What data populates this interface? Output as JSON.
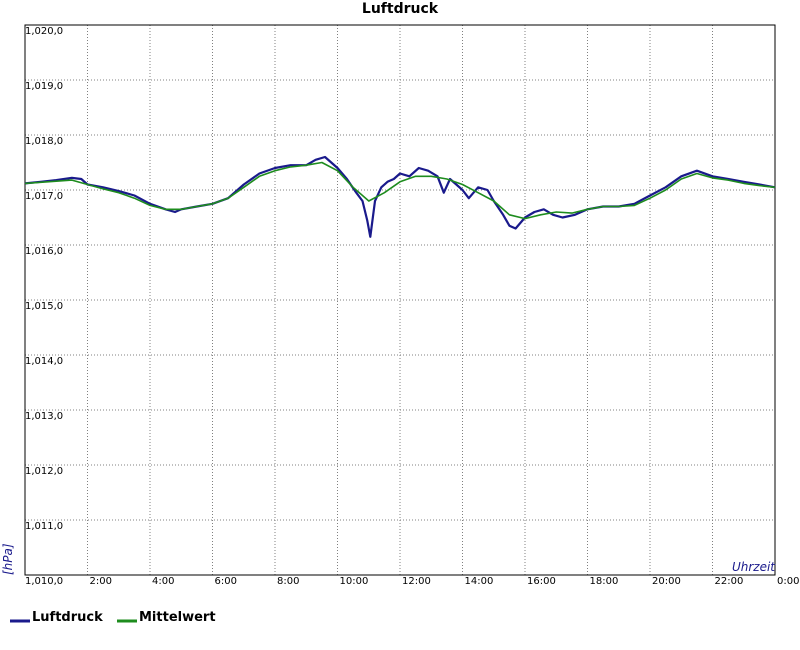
{
  "chart_data": {
    "type": "line",
    "title": "Luftdruck",
    "ylabel": "[hPa]",
    "xlabel": "Uhrzeit",
    "ylim": [
      1010.0,
      1020.0
    ],
    "xlim": [
      0,
      24
    ],
    "y_ticks": [
      "1,010,0",
      "1,011,0",
      "1,012,0",
      "1,013,0",
      "1,014,0",
      "1,015,0",
      "1,016,0",
      "1,017,0",
      "1,018,0",
      "1,019,0",
      "1,020,0"
    ],
    "x_ticks": [
      {
        "x": 2,
        "label": "2:00"
      },
      {
        "x": 4,
        "label": "4:00"
      },
      {
        "x": 6,
        "label": "6:00"
      },
      {
        "x": 8,
        "label": "8:00"
      },
      {
        "x": 10,
        "label": "10:00"
      },
      {
        "x": 12,
        "label": "12:00"
      },
      {
        "x": 14,
        "label": "14:00"
      },
      {
        "x": 16,
        "label": "16:00"
      },
      {
        "x": 18,
        "label": "18:00"
      },
      {
        "x": 20,
        "label": "20:00"
      },
      {
        "x": 22,
        "label": "22:00"
      },
      {
        "x": 24,
        "label": "0:00"
      }
    ],
    "grid": true,
    "legend_position": "bottom-left",
    "series": [
      {
        "name": "Luftdruck",
        "color": "#1a1a8c",
        "points": [
          [
            0.0,
            1017.12
          ],
          [
            0.5,
            1017.15
          ],
          [
            1.0,
            1017.18
          ],
          [
            1.5,
            1017.22
          ],
          [
            1.8,
            1017.2
          ],
          [
            2.0,
            1017.1
          ],
          [
            2.5,
            1017.05
          ],
          [
            3.0,
            1016.98
          ],
          [
            3.5,
            1016.9
          ],
          [
            4.0,
            1016.75
          ],
          [
            4.5,
            1016.65
          ],
          [
            4.8,
            1016.6
          ],
          [
            5.0,
            1016.65
          ],
          [
            5.5,
            1016.7
          ],
          [
            6.0,
            1016.75
          ],
          [
            6.5,
            1016.85
          ],
          [
            7.0,
            1017.1
          ],
          [
            7.5,
            1017.3
          ],
          [
            8.0,
            1017.4
          ],
          [
            8.5,
            1017.45
          ],
          [
            9.0,
            1017.45
          ],
          [
            9.3,
            1017.55
          ],
          [
            9.6,
            1017.6
          ],
          [
            10.0,
            1017.4
          ],
          [
            10.3,
            1017.2
          ],
          [
            10.6,
            1016.95
          ],
          [
            10.8,
            1016.8
          ],
          [
            10.95,
            1016.45
          ],
          [
            11.05,
            1016.15
          ],
          [
            11.2,
            1016.8
          ],
          [
            11.4,
            1017.05
          ],
          [
            11.6,
            1017.15
          ],
          [
            11.8,
            1017.2
          ],
          [
            12.0,
            1017.3
          ],
          [
            12.3,
            1017.25
          ],
          [
            12.6,
            1017.4
          ],
          [
            12.9,
            1017.35
          ],
          [
            13.2,
            1017.25
          ],
          [
            13.4,
            1016.95
          ],
          [
            13.6,
            1017.2
          ],
          [
            13.8,
            1017.1
          ],
          [
            14.0,
            1017.0
          ],
          [
            14.2,
            1016.85
          ],
          [
            14.5,
            1017.05
          ],
          [
            14.8,
            1017.0
          ],
          [
            15.0,
            1016.8
          ],
          [
            15.3,
            1016.55
          ],
          [
            15.5,
            1016.35
          ],
          [
            15.7,
            1016.3
          ],
          [
            16.0,
            1016.5
          ],
          [
            16.3,
            1016.6
          ],
          [
            16.6,
            1016.65
          ],
          [
            16.9,
            1016.55
          ],
          [
            17.2,
            1016.5
          ],
          [
            17.6,
            1016.55
          ],
          [
            18.0,
            1016.65
          ],
          [
            18.5,
            1016.7
          ],
          [
            19.0,
            1016.7
          ],
          [
            19.5,
            1016.75
          ],
          [
            20.0,
            1016.9
          ],
          [
            20.5,
            1017.05
          ],
          [
            21.0,
            1017.25
          ],
          [
            21.5,
            1017.35
          ],
          [
            22.0,
            1017.25
          ],
          [
            22.5,
            1017.2
          ],
          [
            23.0,
            1017.15
          ],
          [
            23.5,
            1017.1
          ],
          [
            24.0,
            1017.05
          ]
        ]
      },
      {
        "name": "Mittelwert",
        "color": "#1e8c1e",
        "points": [
          [
            0.0,
            1017.12
          ],
          [
            0.5,
            1017.14
          ],
          [
            1.0,
            1017.16
          ],
          [
            1.5,
            1017.18
          ],
          [
            2.0,
            1017.1
          ],
          [
            2.5,
            1017.02
          ],
          [
            3.0,
            1016.95
          ],
          [
            3.5,
            1016.85
          ],
          [
            4.0,
            1016.72
          ],
          [
            4.5,
            1016.65
          ],
          [
            5.0,
            1016.65
          ],
          [
            5.5,
            1016.7
          ],
          [
            6.0,
            1016.75
          ],
          [
            6.5,
            1016.85
          ],
          [
            7.0,
            1017.05
          ],
          [
            7.5,
            1017.25
          ],
          [
            8.0,
            1017.35
          ],
          [
            8.5,
            1017.42
          ],
          [
            9.0,
            1017.45
          ],
          [
            9.5,
            1017.5
          ],
          [
            10.0,
            1017.35
          ],
          [
            10.5,
            1017.05
          ],
          [
            11.0,
            1016.8
          ],
          [
            11.5,
            1016.95
          ],
          [
            12.0,
            1017.15
          ],
          [
            12.5,
            1017.25
          ],
          [
            13.0,
            1017.25
          ],
          [
            13.5,
            1017.2
          ],
          [
            14.0,
            1017.1
          ],
          [
            14.5,
            1016.95
          ],
          [
            15.0,
            1016.8
          ],
          [
            15.5,
            1016.55
          ],
          [
            16.0,
            1016.48
          ],
          [
            16.5,
            1016.55
          ],
          [
            17.0,
            1016.6
          ],
          [
            17.5,
            1016.58
          ],
          [
            18.0,
            1016.65
          ],
          [
            18.5,
            1016.7
          ],
          [
            19.0,
            1016.7
          ],
          [
            19.5,
            1016.72
          ],
          [
            20.0,
            1016.85
          ],
          [
            20.5,
            1017.0
          ],
          [
            21.0,
            1017.2
          ],
          [
            21.5,
            1017.3
          ],
          [
            22.0,
            1017.22
          ],
          [
            22.5,
            1017.18
          ],
          [
            23.0,
            1017.12
          ],
          [
            23.5,
            1017.08
          ],
          [
            24.0,
            1017.05
          ]
        ]
      }
    ]
  }
}
